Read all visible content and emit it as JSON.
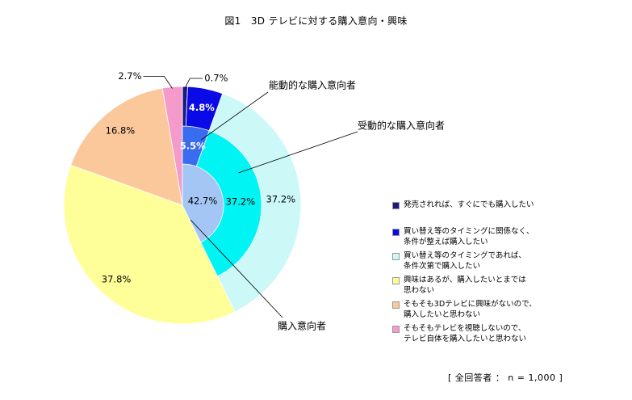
{
  "chart_data": {
    "type": "pie",
    "title": "図1　3D テレビに対する購入意向・興味",
    "rings": [
      {
        "name": "outer",
        "slices": [
          {
            "label": "発売されれば、すぐにでも購入したい",
            "value": 0.7,
            "text": "0.7%",
            "color": "#1a1a80"
          },
          {
            "label": "買い替え等のタイミングに関係なく、\n条件が整えば購入したい",
            "value": 4.8,
            "text": "4.8%",
            "color": "#0a0ae6"
          },
          {
            "label": "買い替え等のタイミングであれば、\n条件次第で購入したい",
            "value": 37.2,
            "text": "37.2%",
            "color": "#ccf8f8"
          },
          {
            "label": "興味はあるが、購入したいとまでは\n思わない",
            "value": 37.8,
            "text": "37.8%",
            "color": "#ffff99"
          },
          {
            "label": "そもそも3Dテレビに興味がないので、\n購入したいと思わない",
            "value": 16.8,
            "text": "16.8%",
            "color": "#fac89b"
          },
          {
            "label": "そもそもテレビを視聴しないので、\nテレビ自体を購入したいと思わない",
            "value": 2.7,
            "text": "2.7%",
            "color": "#f49bcc"
          }
        ]
      },
      {
        "name": "middle",
        "slices": [
          {
            "label": "能動的な購入意向者",
            "value": 5.5,
            "text": "5.5%",
            "color": "#3a6cf0"
          },
          {
            "label": "受動的な購入意向者",
            "value": 37.2,
            "text": "37.2%",
            "color": "#00f4f4"
          }
        ]
      },
      {
        "name": "inner",
        "slices": [
          {
            "label": "購入意向者",
            "value": 42.7,
            "text": "42.7%",
            "color": "#a3c6f4"
          }
        ]
      }
    ],
    "callouts": [
      "能動的な購入意向者",
      "受動的な購入意向者",
      "購入意向者"
    ]
  },
  "footnote": "[ 全回答者 ： n = 1,000 ]"
}
